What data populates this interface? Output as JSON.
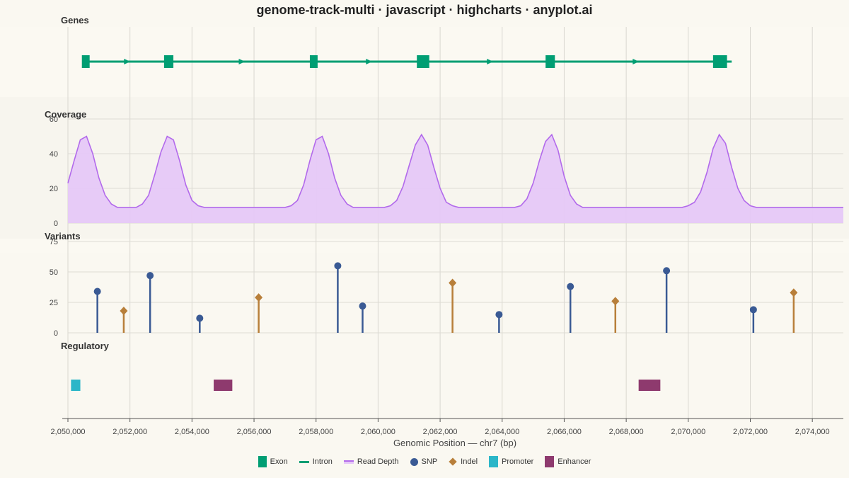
{
  "title": "genome-track-multi · javascript · highcharts · anyplot.ai",
  "colors": {
    "background": "#FAF8F1",
    "gene": "#009E73",
    "coverage_line": "#B26AEB",
    "coverage_fill": "#E6C8F7",
    "snp": "#3A5A94",
    "indel": "#B87F3A",
    "promoter": "#2BB6C8",
    "enhancer": "#8E3A6E"
  },
  "chart_data": {
    "type": "multi-track",
    "xlabel": "Genomic Position — chr7 (bp)",
    "xlim": [
      2050000,
      2075000
    ],
    "xticks": [
      2050000,
      2052000,
      2054000,
      2056000,
      2058000,
      2060000,
      2062000,
      2064000,
      2066000,
      2068000,
      2070000,
      2072000,
      2074000
    ],
    "xtick_labels": [
      "2,050,000",
      "2,052,000",
      "2,054,000",
      "2,056,000",
      "2,058,000",
      "2,060,000",
      "2,062,000",
      "2,064,000",
      "2,066,000",
      "2,068,000",
      "2,070,000",
      "2,072,000",
      "2,074,000"
    ],
    "tracks": {
      "genes": {
        "label": "Genes",
        "gene_start": 2050500,
        "gene_end": 2071400,
        "strand": "+",
        "exons": [
          [
            2050450,
            2050700
          ],
          [
            2053100,
            2053400
          ],
          [
            2057800,
            2058050
          ],
          [
            2061250,
            2061650
          ],
          [
            2065400,
            2065700
          ],
          [
            2070800,
            2071250
          ]
        ],
        "arrows": [
          2051900,
          2055600,
          2059700,
          2063600,
          2068300
        ]
      },
      "coverage": {
        "label": "Coverage",
        "ylim": [
          0,
          60
        ],
        "yticks": [
          0,
          20,
          40,
          60
        ],
        "x": [
          2050000,
          2050200,
          2050400,
          2050600,
          2050800,
          2051000,
          2051200,
          2051400,
          2051600,
          2051800,
          2052000,
          2052200,
          2052400,
          2052600,
          2052800,
          2053000,
          2053200,
          2053400,
          2053600,
          2053800,
          2054000,
          2054200,
          2054400,
          2054600,
          2054800,
          2055000,
          2055200,
          2055400,
          2055600,
          2055800,
          2056000,
          2056200,
          2056400,
          2056600,
          2056800,
          2057000,
          2057200,
          2057400,
          2057600,
          2057800,
          2058000,
          2058200,
          2058400,
          2058600,
          2058800,
          2059000,
          2059200,
          2059400,
          2059600,
          2059800,
          2060000,
          2060200,
          2060400,
          2060600,
          2060800,
          2061000,
          2061200,
          2061400,
          2061600,
          2061800,
          2062000,
          2062200,
          2062400,
          2062600,
          2062800,
          2063000,
          2063200,
          2063400,
          2063600,
          2063800,
          2064000,
          2064200,
          2064400,
          2064600,
          2064800,
          2065000,
          2065200,
          2065400,
          2065600,
          2065800,
          2066000,
          2066200,
          2066400,
          2066600,
          2066800,
          2067000,
          2067200,
          2067400,
          2067600,
          2067800,
          2068000,
          2068200,
          2068400,
          2068600,
          2068800,
          2069000,
          2069200,
          2069400,
          2069600,
          2069800,
          2070000,
          2070200,
          2070400,
          2070600,
          2070800,
          2071000,
          2071200,
          2071400,
          2071600,
          2071800,
          2072000,
          2072200,
          2072400,
          2072600,
          2072800,
          2073000,
          2073200,
          2073400,
          2073600,
          2073800,
          2074000,
          2074200,
          2074400,
          2074600,
          2074800,
          2075000
        ],
        "values": [
          23,
          36,
          48,
          50,
          40,
          26,
          16,
          11,
          9,
          9,
          9,
          9,
          11,
          16,
          28,
          41,
          50,
          48,
          36,
          22,
          13,
          10,
          9,
          9,
          9,
          9,
          9,
          9,
          9,
          9,
          9,
          9,
          9,
          9,
          9,
          9,
          10,
          13,
          22,
          36,
          48,
          50,
          40,
          26,
          16,
          11,
          9,
          9,
          9,
          9,
          9,
          9,
          10,
          13,
          21,
          33,
          45,
          51,
          45,
          32,
          20,
          12,
          10,
          9,
          9,
          9,
          9,
          9,
          9,
          9,
          9,
          9,
          9,
          10,
          14,
          23,
          36,
          47,
          51,
          42,
          27,
          16,
          11,
          9,
          9,
          9,
          9,
          9,
          9,
          9,
          9,
          9,
          9,
          9,
          9,
          9,
          9,
          9,
          9,
          9,
          10,
          12,
          18,
          29,
          43,
          51,
          46,
          32,
          20,
          13,
          10,
          9,
          9,
          9,
          9,
          9,
          9,
          9,
          9,
          9,
          9,
          9,
          9,
          9,
          9,
          9
        ]
      },
      "variants": {
        "label": "Variants",
        "ylim": [
          0,
          75
        ],
        "yticks": [
          0,
          25,
          50,
          75
        ],
        "points": [
          {
            "x": 2050950,
            "y": 34,
            "type": "SNP"
          },
          {
            "x": 2051800,
            "y": 18,
            "type": "Indel"
          },
          {
            "x": 2052650,
            "y": 47,
            "type": "SNP"
          },
          {
            "x": 2054250,
            "y": 12,
            "type": "SNP"
          },
          {
            "x": 2056150,
            "y": 29,
            "type": "Indel"
          },
          {
            "x": 2058700,
            "y": 55,
            "type": "SNP"
          },
          {
            "x": 2059500,
            "y": 22,
            "type": "SNP"
          },
          {
            "x": 2062400,
            "y": 41,
            "type": "Indel"
          },
          {
            "x": 2063900,
            "y": 15,
            "type": "SNP"
          },
          {
            "x": 2066200,
            "y": 38,
            "type": "SNP"
          },
          {
            "x": 2067650,
            "y": 26,
            "type": "Indel"
          },
          {
            "x": 2069300,
            "y": 51,
            "type": "SNP"
          },
          {
            "x": 2072100,
            "y": 19,
            "type": "SNP"
          },
          {
            "x": 2073400,
            "y": 33,
            "type": "Indel"
          }
        ]
      },
      "regulatory": {
        "label": "Regulatory",
        "regions": [
          {
            "start": 2050100,
            "end": 2050400,
            "type": "Promoter"
          },
          {
            "start": 2054700,
            "end": 2055300,
            "type": "Enhancer"
          },
          {
            "start": 2068400,
            "end": 2069100,
            "type": "Enhancer"
          }
        ]
      }
    },
    "legend": [
      {
        "label": "Exon",
        "symbol": "exon"
      },
      {
        "label": "Intron",
        "symbol": "intron"
      },
      {
        "label": "Read Depth",
        "symbol": "read"
      },
      {
        "label": "SNP",
        "symbol": "snp"
      },
      {
        "label": "Indel",
        "symbol": "indel"
      },
      {
        "label": "Promoter",
        "symbol": "promoter"
      },
      {
        "label": "Enhancer",
        "symbol": "enhancer"
      }
    ]
  }
}
